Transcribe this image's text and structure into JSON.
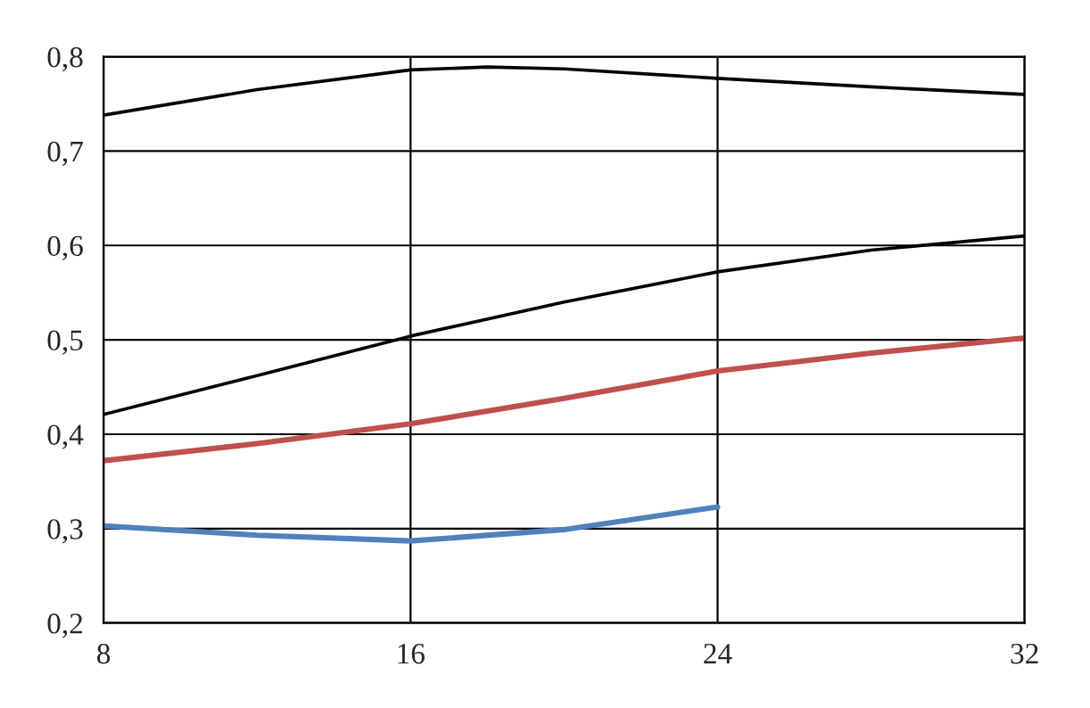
{
  "chart_data": {
    "type": "line",
    "xlim": [
      8,
      32
    ],
    "xticks": [
      8,
      16,
      24,
      32
    ],
    "ylim": [
      0.2,
      0.8
    ],
    "yticks": [
      {
        "value": 0.2,
        "label": "0,2"
      },
      {
        "value": 0.3,
        "label": "0,3"
      },
      {
        "value": 0.4,
        "label": "0,4"
      },
      {
        "value": 0.5,
        "label": "0,5"
      },
      {
        "value": 0.6,
        "label": "0,6"
      },
      {
        "value": 0.7,
        "label": "0,7"
      },
      {
        "value": 0.8,
        "label": "0,8"
      }
    ],
    "grid": true,
    "marker": "none",
    "line_style": "solid",
    "series": [
      {
        "color": "#000000",
        "x": [
          8,
          12,
          16,
          18,
          20,
          24,
          28,
          32
        ],
        "values": [
          0.738,
          0.765,
          0.786,
          0.789,
          0.787,
          0.777,
          0.768,
          0.76
        ]
      },
      {
        "color": "#000000",
        "x": [
          8,
          12,
          16,
          20,
          24,
          28,
          32
        ],
        "values": [
          0.421,
          0.462,
          0.504,
          0.54,
          0.572,
          0.595,
          0.61
        ]
      },
      {
        "color": "#c0504d",
        "x": [
          8,
          12,
          16,
          20,
          24,
          28,
          32
        ],
        "values": [
          0.372,
          0.39,
          0.411,
          0.438,
          0.467,
          0.486,
          0.502
        ]
      },
      {
        "color": "#4f81bd",
        "x": [
          8,
          12,
          16,
          20,
          24
        ],
        "values": [
          0.303,
          0.293,
          0.287,
          0.299,
          0.323
        ]
      }
    ]
  }
}
